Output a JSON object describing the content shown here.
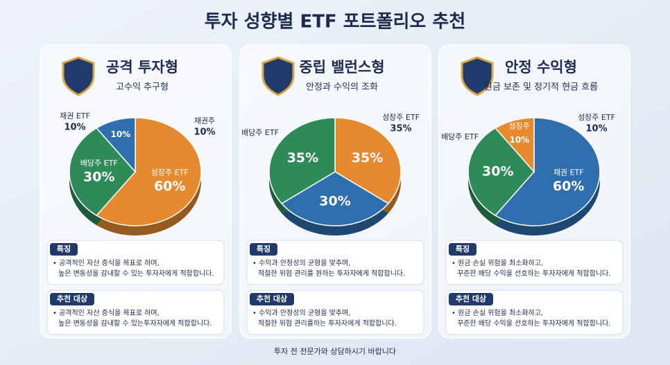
{
  "title": "투자 성향별 ETF 포트폴리오 추천",
  "footnote": "투자 전 전문가와 상담하시기 바랍니다",
  "chart_data": [
    {
      "type": "pie",
      "title": "공격 투자형",
      "subtitle": "고수익 추구형",
      "categories": [
        "성장주 ETF",
        "배당주 ETF",
        null
      ],
      "values": [
        60,
        30,
        10
      ],
      "value_labels": [
        "60%",
        "30%",
        "10%"
      ],
      "colors": [
        "#e58a2e",
        "#2f8a5a",
        "#2f6fae"
      ],
      "callouts": [
        {
          "label": "채권 ETF",
          "text": "10%"
        },
        {
          "label": "채권주",
          "text": "10%"
        }
      ],
      "features_heading": "특징",
      "features": [
        "• 공격적인 자산 증식을 목표로 하며,",
        "높은 변동성을 감내할 수 있는 투자자에게 적합합니다."
      ],
      "recommend_heading": "추천 대상",
      "recommend": [
        "• 공격적인 자산 증식을 목표로 하며,",
        "높은 변동성을 감내할 수 있는투자자에게 적합합니다."
      ]
    },
    {
      "type": "pie",
      "title": "중립 밸런스형",
      "subtitle": "안정과 수익의 조화",
      "categories": [
        null,
        null,
        null
      ],
      "values": [
        35,
        30,
        35
      ],
      "value_labels": [
        "35%",
        "30%",
        "35%"
      ],
      "colors": [
        "#e58a2e",
        "#2f6fae",
        "#2f8a5a"
      ],
      "callouts": [
        {
          "label": "성장주 ETF",
          "text": "35%"
        },
        {
          "label": "배당주 ETF",
          "text": null
        }
      ],
      "features_heading": "특징",
      "features": [
        "• 수익과 안정성의 균형을 맞추며,",
        "적절한 위험 관리를 원하는 투자자에게 적합합니다."
      ],
      "recommend_heading": "추천 대상",
      "recommend": [
        "• 수익과 안정성의 균형을 맞추며,",
        "적절한 위험 관리를하는 투자자에게 적합합니다."
      ]
    },
    {
      "type": "pie",
      "title": "안정 수익형",
      "subtitle": "원금 보존 및 정기적 현금 흐름",
      "categories": [
        "채권 ETF",
        null,
        "성장주"
      ],
      "values": [
        60,
        30,
        10
      ],
      "value_labels": [
        "60%",
        "30%",
        "10%"
      ],
      "colors": [
        "#2f6fae",
        "#2f8a5a",
        "#e58a2e"
      ],
      "callouts": [
        {
          "label": "성장주 ETF",
          "text": "10%"
        },
        {
          "label": "배당주 ETF",
          "text": null
        }
      ],
      "features_heading": "특징",
      "features": [
        "• 원금 손실 위험을 최소화하고,",
        "꾸준한 배당 수익을 선호하는 투자자에게 적합합니다."
      ],
      "recommend_heading": "추천 대상",
      "recommend": [
        "• 원금 손실 위험을 최소화하고,",
        "꾸준한 배당 수익을 선호하는 투자자에게 적합합니다."
      ]
    }
  ]
}
